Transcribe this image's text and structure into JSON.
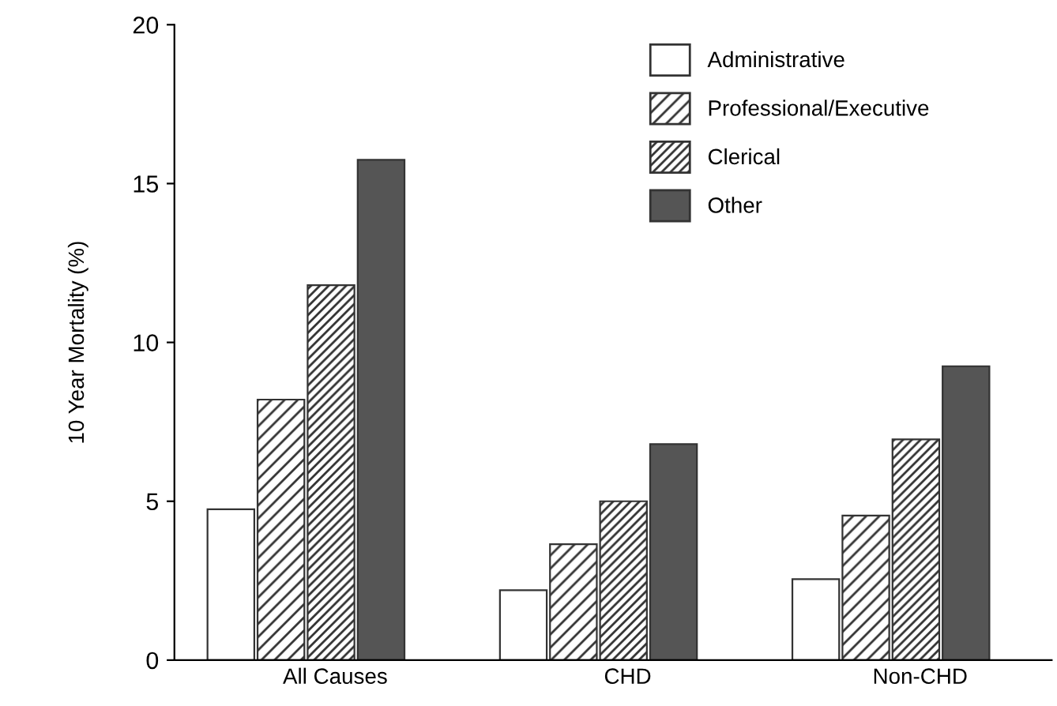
{
  "chart_data": {
    "type": "bar",
    "ylabel": "10 Year Mortality (%)",
    "categories": [
      "All Causes",
      "CHD",
      "Non-CHD"
    ],
    "series": [
      {
        "name": "Administrative",
        "color": "#ffffff",
        "values": [
          4.75,
          2.2,
          2.55
        ]
      },
      {
        "name": "Professional/Executive",
        "color": "#333333",
        "values": [
          8.2,
          3.65,
          4.55
        ]
      },
      {
        "name": "Clerical",
        "color": "#333333",
        "values": [
          11.8,
          5.0,
          6.95
        ]
      },
      {
        "name": "Other",
        "color": "#555555",
        "values": [
          15.75,
          6.8,
          9.25
        ]
      }
    ],
    "ylim": [
      0,
      20
    ],
    "yticks": [
      0,
      5,
      10,
      15,
      20
    ],
    "grid": false,
    "legend": "top"
  }
}
